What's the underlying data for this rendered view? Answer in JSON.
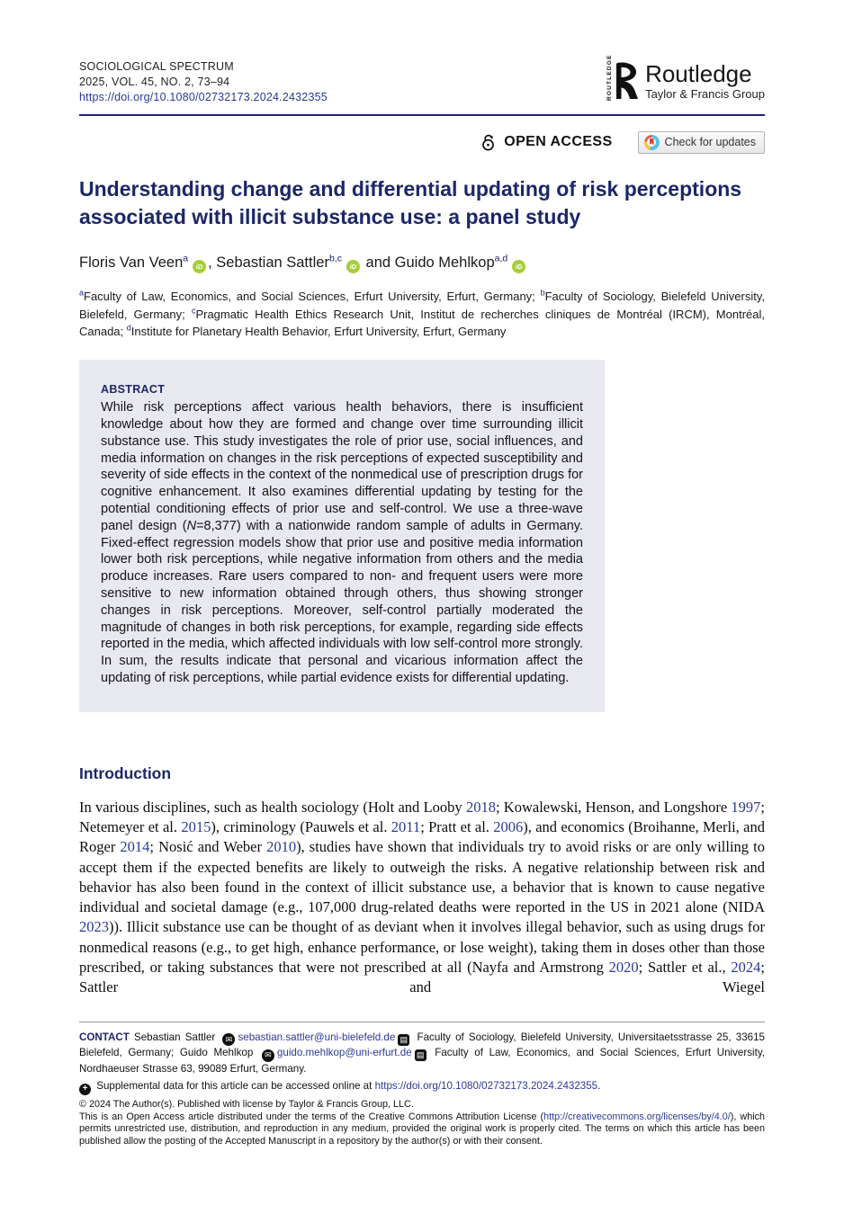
{
  "header": {
    "journal": "SOCIOLOGICAL SPECTRUM",
    "issue": "2025, VOL. 45, NO. 2, 73–94",
    "doi": "https://doi.org/10.1080/02732173.2024.2432355",
    "publisher": {
      "vertical": "ROUTLEDGE",
      "name": "Routledge",
      "tagline": "Taylor & Francis Group"
    }
  },
  "badges": {
    "open_access": "OPEN ACCESS",
    "check_updates": "Check for updates"
  },
  "article": {
    "title": "Understanding change and differential updating of risk perceptions associated with illicit substance use: a panel study",
    "authors": [
      {
        "t": "Floris Van Veen"
      },
      {
        "s": "a"
      },
      {
        "i": "orcid"
      },
      {
        "t": ", Sebastian Sattler"
      },
      {
        "s": "b,c"
      },
      {
        "i": "orcid"
      },
      {
        "t": " and Guido Mehlkop"
      },
      {
        "s": "a,d"
      },
      {
        "i": "orcid"
      }
    ],
    "affiliations": [
      {
        "s": "a"
      },
      {
        "t": "Faculty of Law, Economics, and Social Sciences, Erfurt University, Erfurt, Germany; "
      },
      {
        "s": "b"
      },
      {
        "t": "Faculty of Sociology, Bielefeld University, Bielefeld, Germany; "
      },
      {
        "s": "c"
      },
      {
        "t": "Pragmatic Health Ethics Research Unit, Institut de recherches cliniques de Montréal (IRCM), Montréal, Canada; "
      },
      {
        "s": "d"
      },
      {
        "t": "Institute for Planetary Health Behavior, Erfurt University, Erfurt, Germany"
      }
    ]
  },
  "abstract": {
    "label": "ABSTRACT",
    "segments": [
      {
        "t": "While risk perceptions affect various health behaviors, there is insufficient knowledge about how they are formed and change over time surrounding illicit substance use. This study investigates the role of prior use, social influences, and media information on changes in the risk perceptions of expected susceptibility and severity of side effects in the context of the nonmedical use of prescription drugs for cognitive enhancement. It also examines differential updating by testing for the potential conditioning effects of prior use and self-control. We use a three-wave panel design ("
      },
      {
        "it": "N"
      },
      {
        "t": "=8,377) with a nationwide random sample of adults in Germany. Fixed-effect regression models show that prior use and positive media information lower both risk perceptions, while negative information from others and the media produce increases. Rare users compared to non- and frequent users were more sensitive to new information obtained through others, thus showing stronger changes in risk perceptions. Moreover, self-control partially moderated the magnitude of changes in both risk perceptions, for example, regarding side effects reported in the media, which affected individuals with low self-control more strongly. In sum, the results indicate that personal and vicarious information affect the updating of risk perceptions, while partial evidence exists for differential updating."
      }
    ]
  },
  "intro": {
    "heading": "Introduction",
    "segments": [
      {
        "t": "In various disciplines, such as health sociology (Holt and Looby "
      },
      {
        "l": "2018"
      },
      {
        "t": "; Kowalewski, Henson, and Longshore "
      },
      {
        "l": "1997"
      },
      {
        "t": "; Netemeyer et al. "
      },
      {
        "l": "2015"
      },
      {
        "t": "), criminology (Pauwels et al. "
      },
      {
        "l": "2011"
      },
      {
        "t": "; Pratt et al. "
      },
      {
        "l": "2006"
      },
      {
        "t": "), and economics (Broihanne, Merli, and Roger "
      },
      {
        "l": "2014"
      },
      {
        "t": "; Nosić and Weber "
      },
      {
        "l": "2010"
      },
      {
        "t": "), studies have shown that individuals try to avoid risks or are only willing to accept them if the expected benefits are likely to outweigh the risks. A negative relationship between risk and behavior has also been found in the context of illicit substance use, a behavior that is known to cause negative individual and societal damage (e.g., 107,000 drug-related deaths were reported in the US in 2021 alone (NIDA "
      },
      {
        "l": "2023"
      },
      {
        "t": ")). Illicit substance use can be thought of as deviant when it involves illegal behavior, such as using drugs for nonmedical reasons (e.g., to get high, enhance performance, or lose weight), taking them in doses other than those prescribed, or taking substances that were not prescribed at all (Nayfa and Armstrong "
      },
      {
        "l": "2020"
      },
      {
        "t": "; Sattler et al., "
      },
      {
        "l": "2024"
      },
      {
        "t": "; Sattler and Wiegel"
      }
    ]
  },
  "footer": {
    "contact": [
      {
        "b": "CONTACT"
      },
      {
        "t": " Sebastian Sattler "
      },
      {
        "i": "mail"
      },
      {
        "l": "sebastian.sattler@uni-bielefeld.de"
      },
      {
        "i": "dept"
      },
      {
        "t": " Faculty of Sociology, Bielefeld University, Universitaetsstrasse 25, 33615 Bielefeld, Germany; Guido Mehlkop "
      },
      {
        "i": "mail"
      },
      {
        "l": "guido.mehlkop@uni-erfurt.de"
      },
      {
        "i": "dept"
      },
      {
        "t": " Faculty of Law, Economics, and Social Sciences, Erfurt University, Nordhaeuser Strasse 63, 99089 Erfurt, Germany."
      }
    ],
    "supplemental": [
      {
        "i": "suppl"
      },
      {
        "t": " Supplemental data for this article can be accessed online at "
      },
      {
        "l": "https://doi.org/10.1080/02732173.2024.2432355"
      },
      {
        "t": "."
      }
    ],
    "copyright": "© 2024 The Author(s). Published with license by Taylor & Francis Group, LLC.",
    "license": [
      {
        "t": "This is an Open Access article distributed under the terms of the Creative Commons Attribution License ("
      },
      {
        "l": "http://creativecommons.org/licenses/by/4.0/"
      },
      {
        "t": "), which permits unrestricted use, distribution, and reproduction in any medium, provided the original work is properly cited. The terms on which this article has been published allow the posting of the Accepted Manuscript in a repository by the author(s) or with their consent."
      }
    ]
  },
  "colors": {
    "navy": "#1c2768",
    "link_blue": "#2b3a94",
    "abstract_bg": "#e8e8f1",
    "orcid_green": "#a6ce39",
    "check_blue": "#56c2e1",
    "check_yellow": "#f0c63c",
    "check_red": "#e45d55",
    "logo_black": "#111111"
  }
}
